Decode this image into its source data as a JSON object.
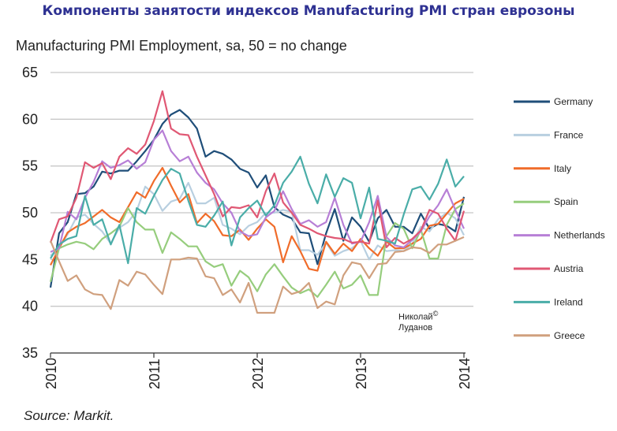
{
  "header": {
    "title": "Компоненты занятости индексов Manufacturing PMI стран еврозоны"
  },
  "watermark": {
    "line1": "Николай",
    "symbol": "©",
    "line2": "Луданов"
  },
  "footer": {
    "source": "Source: Markit."
  },
  "chart_data": {
    "type": "line",
    "title": "Manufacturing PMI Employment, sa, 50 = no change",
    "xlabel": "",
    "ylabel": "",
    "ylim": [
      35,
      65
    ],
    "yticks": [
      35,
      40,
      45,
      50,
      55,
      60,
      65
    ],
    "xticks": [
      "2010",
      "2011",
      "2012",
      "2013",
      "2014"
    ],
    "x_start": "2010-01",
    "x_end": "2014-01",
    "frequency": "monthly",
    "grid": true,
    "legend": "right",
    "series": [
      {
        "name": "Germany",
        "color": "#1f4e79",
        "values": [
          42,
          47.8,
          49,
          52,
          52.1,
          52.8,
          54.4,
          54.2,
          54.5,
          54.5,
          55.5,
          56.6,
          57.8,
          59.5,
          60.5,
          61,
          60.2,
          59,
          56,
          56.6,
          56.3,
          55.7,
          54.7,
          54.3,
          52.7,
          54,
          50.6,
          49.8,
          49.4,
          47.9,
          47.8,
          44.5,
          47.8,
          50.4,
          47,
          49.5,
          48.5,
          46.9,
          49.4,
          50.3,
          48.5,
          48.5,
          47.8,
          49.9,
          48.3,
          48.8,
          48.6,
          48,
          51.7
        ]
      },
      {
        "name": "France",
        "color": "#b8cfe0",
        "values": [
          45.4,
          46.3,
          47.7,
          49.5,
          49.8,
          48.8,
          48,
          46.7,
          48.4,
          49,
          50.2,
          52.8,
          52,
          50.2,
          51.2,
          51.5,
          53.2,
          51,
          51,
          51.6,
          48.7,
          48.3,
          47.7,
          48.6,
          49,
          50,
          50,
          50.3,
          50.1,
          46,
          46,
          45.5,
          46.8,
          45.4,
          45.9,
          46.2,
          47,
          45,
          46.5,
          45.9,
          46,
          45.9,
          46.7,
          48.5,
          48,
          49.3,
          50,
          49.4,
          47.6
        ]
      },
      {
        "name": "Italy",
        "color": "#f06c2a",
        "values": [
          44.4,
          46.2,
          47.9,
          48.5,
          48.9,
          49.6,
          50.3,
          49.5,
          49,
          50.6,
          52.2,
          51.6,
          53.4,
          54.8,
          52.9,
          51.1,
          52,
          48.9,
          49.9,
          49.1,
          47.6,
          47.5,
          48.2,
          47.1,
          48.3,
          49.3,
          48.5,
          44.7,
          47.5,
          45.9,
          44,
          43.8,
          46.9,
          45.6,
          46.7,
          45.9,
          47.2,
          46.2,
          45.4,
          46.9,
          46.2,
          46.2,
          46.7,
          47.2,
          48.6,
          48.8,
          49.9,
          51,
          51.5
        ]
      },
      {
        "name": "Spain",
        "color": "#96cd7d",
        "values": [
          42.6,
          46.2,
          46.6,
          46.9,
          46.7,
          46.1,
          47.2,
          47.8,
          48.5,
          50.5,
          49,
          48.2,
          48.2,
          45.7,
          47.9,
          47.2,
          46.4,
          46.4,
          44.8,
          44.2,
          44.5,
          42.2,
          43.8,
          43.1,
          41.6,
          43.4,
          44.5,
          43.2,
          42,
          41.4,
          41.8,
          41,
          42.3,
          43.7,
          41.9,
          42.3,
          43.3,
          41.2,
          41.2,
          47.5,
          48.9,
          48.3,
          46.2,
          48.2,
          45.1,
          45.1,
          48.7,
          50.4,
          51
        ]
      },
      {
        "name": "Netherlands",
        "color": "#b77fd6",
        "values": [
          45.8,
          46.2,
          50.1,
          49.3,
          51.6,
          53.3,
          55.5,
          54.8,
          55.1,
          55.6,
          54.7,
          55.4,
          57.8,
          58.8,
          56.6,
          55.5,
          56,
          54.3,
          53.2,
          52.5,
          51,
          50,
          48,
          47.5,
          47.7,
          49.5,
          50.2,
          52.3,
          50.4,
          48.8,
          49.2,
          48.5,
          49,
          51.6,
          48.7,
          46.7,
          46.9,
          49,
          51.8,
          47.4,
          46.5,
          46.3,
          47.1,
          48,
          49.6,
          50.8,
          52.5,
          50.3,
          48.3
        ]
      },
      {
        "name": "Austria",
        "color": "#e05874",
        "values": [
          46.8,
          49.3,
          49.6,
          51.6,
          55.4,
          54.8,
          55.3,
          53.6,
          56,
          56.9,
          56.3,
          57.3,
          59.8,
          63,
          59,
          58.4,
          58.3,
          56,
          54,
          52,
          49.6,
          50.6,
          50.5,
          50.8,
          49.5,
          52.3,
          54.2,
          51.1,
          50,
          48.7,
          48.3,
          47.8,
          47.5,
          47.3,
          47.2,
          46.8,
          46.9,
          46.7,
          51.3,
          46.3,
          47.3,
          46.7,
          47.2,
          48.1,
          50.3,
          49.9,
          48.3,
          47,
          50.2
        ]
      },
      {
        "name": "Ireland",
        "color": "#4aada8",
        "values": [
          45.1,
          46.6,
          47.2,
          47.5,
          51.8,
          48.7,
          49.3,
          46.6,
          48.7,
          44.6,
          50.5,
          49.9,
          51.8,
          53.5,
          54.7,
          54.2,
          51.3,
          48.7,
          48.5,
          49.7,
          51.2,
          46.5,
          49.5,
          50.5,
          51.3,
          49.7,
          50.8,
          53.2,
          54.4,
          56,
          53.1,
          51,
          54.1,
          51.7,
          53.7,
          53.2,
          49.4,
          52.7,
          47.2,
          47,
          46.7,
          49.8,
          52.5,
          52.8,
          51.4,
          53.1,
          55.7,
          52.8,
          53.9
        ]
      },
      {
        "name": "Greece",
        "color": "#d0a07e",
        "values": [
          47,
          44.8,
          42.7,
          43.3,
          41.8,
          41.3,
          41.2,
          39.7,
          42.8,
          42.2,
          43.7,
          43.4,
          42.3,
          41.3,
          45,
          45,
          45.2,
          45.1,
          43.2,
          43,
          41.2,
          41.8,
          40.4,
          42.5,
          39.3,
          39.3,
          39.3,
          42.1,
          41.3,
          41.6,
          42.5,
          39.8,
          40.5,
          40.2,
          43.3,
          44.7,
          44.5,
          43,
          44.5,
          44.6,
          45.8,
          45.9,
          46.3,
          46.2,
          45.7,
          46.6,
          46.6,
          47,
          47.4
        ]
      }
    ]
  }
}
